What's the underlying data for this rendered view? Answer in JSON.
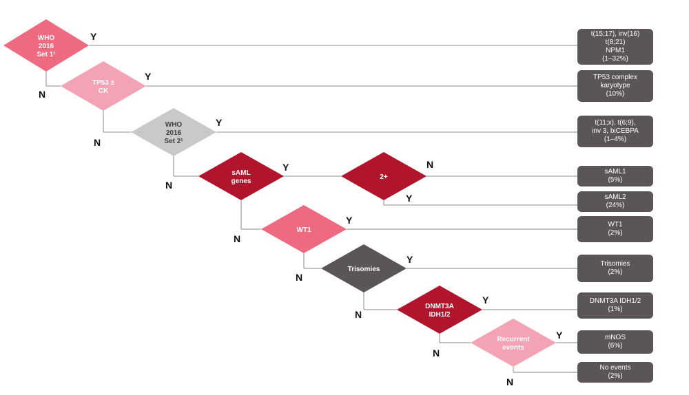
{
  "colors": {
    "salmon": "#ee6a81",
    "light_pink": "#f4a3b4",
    "grey": "#cbc8ca",
    "crimson": "#b0152d",
    "dark_grey": "#5b5557",
    "box": "#5b5557",
    "line": "#8a8a8a"
  },
  "decisions": [
    {
      "id": "who-set1",
      "lines": [
        "WHO",
        "2016",
        "Set 1¹"
      ],
      "color": "salmon",
      "yes": "Y",
      "no": "N"
    },
    {
      "id": "tp53-ck",
      "lines": [
        "TP53 ±",
        "CK"
      ],
      "color": "light_pink",
      "yes": "Y",
      "no": "N"
    },
    {
      "id": "who-set2",
      "lines": [
        "WHO",
        "2016",
        "Set 2¹"
      ],
      "color": "grey",
      "yes": "Y",
      "no": "N"
    },
    {
      "id": "saml-genes",
      "lines": [
        "sAML",
        "genes"
      ],
      "color": "crimson",
      "yes": "Y",
      "no": "N"
    },
    {
      "id": "two-plus",
      "lines": [
        "2+"
      ],
      "color": "crimson",
      "yes": "Y",
      "no": "N"
    },
    {
      "id": "wt1",
      "lines": [
        "WT1"
      ],
      "color": "salmon",
      "yes": "Y",
      "no": "N"
    },
    {
      "id": "trisomies",
      "lines": [
        "Trisomies"
      ],
      "color": "dark_grey",
      "yes": "Y",
      "no": "N"
    },
    {
      "id": "dnmt3a",
      "lines": [
        "DNMT3A",
        "IDH1/2"
      ],
      "color": "crimson",
      "yes": "Y",
      "no": "N"
    },
    {
      "id": "recurrent",
      "lines": [
        "Recurrent",
        "events"
      ],
      "color": "light_pink",
      "yes": "Y",
      "no": "N"
    }
  ],
  "outcomes": [
    {
      "id": "outcome-favorable",
      "lines": [
        "t(15;17), inv(16)",
        "t(8;21)",
        "NPM1",
        "(1–32%)"
      ]
    },
    {
      "id": "outcome-tp53",
      "lines": [
        "TP53 complex",
        "karyotype",
        "(10%)"
      ]
    },
    {
      "id": "outcome-who-set2",
      "lines": [
        "t(11;x), t(6;9),",
        "inv 3, biCEBPA",
        "(1–4%)"
      ]
    },
    {
      "id": "outcome-saml1",
      "lines": [
        "sAML1",
        "(5%)"
      ]
    },
    {
      "id": "outcome-saml2",
      "lines": [
        "sAML2",
        "(24%)"
      ]
    },
    {
      "id": "outcome-wt1",
      "lines": [
        "WT1",
        "(2%)"
      ]
    },
    {
      "id": "outcome-trisomies",
      "lines": [
        "Trisomies",
        "(2%)"
      ]
    },
    {
      "id": "outcome-dnmt3a",
      "lines": [
        "DNMT3A IDH1/2",
        "(1%)"
      ]
    },
    {
      "id": "outcome-mnos",
      "lines": [
        "mNOS",
        "(6%)"
      ]
    },
    {
      "id": "outcome-no-events",
      "lines": [
        "No events",
        "(2%)"
      ]
    }
  ]
}
